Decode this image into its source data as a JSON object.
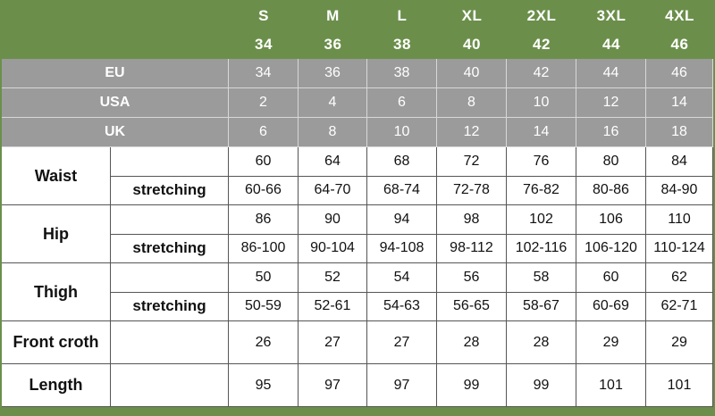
{
  "header": {
    "sizes": [
      "S",
      "M",
      "L",
      "XL",
      "2XL",
      "3XL",
      "4XL"
    ],
    "numbers": [
      34,
      36,
      38,
      40,
      42,
      44,
      46
    ]
  },
  "regions": [
    {
      "label": "EU",
      "values": [
        34,
        36,
        38,
        40,
        42,
        44,
        46
      ]
    },
    {
      "label": "USA",
      "values": [
        2,
        4,
        6,
        8,
        10,
        12,
        14
      ]
    },
    {
      "label": "UK",
      "values": [
        6,
        8,
        10,
        12,
        14,
        16,
        18
      ]
    }
  ],
  "measurements": [
    {
      "label": "Waist",
      "values": [
        60,
        64,
        68,
        72,
        76,
        80,
        84
      ],
      "sub_label": "stretching",
      "stretch": [
        "60-66",
        "64-70",
        "68-74",
        "72-78",
        "76-82",
        "80-86",
        "84-90"
      ]
    },
    {
      "label": "Hip",
      "values": [
        86,
        90,
        94,
        98,
        102,
        106,
        110
      ],
      "sub_label": "stretching",
      "stretch": [
        "86-100",
        "90-104",
        "94-108",
        "98-112",
        "102-116",
        "106-120",
        "110-124"
      ]
    },
    {
      "label": "Thigh",
      "values": [
        50,
        52,
        54,
        56,
        58,
        60,
        62
      ],
      "sub_label": "stretching",
      "stretch": [
        "50-59",
        "52-61",
        "54-63",
        "56-65",
        "58-67",
        "60-69",
        "62-71"
      ]
    },
    {
      "label": "Front croth",
      "values": [
        26,
        27,
        27,
        28,
        28,
        29,
        29
      ]
    },
    {
      "label": "Length",
      "values": [
        95,
        97,
        97,
        99,
        99,
        101,
        101
      ]
    }
  ]
}
